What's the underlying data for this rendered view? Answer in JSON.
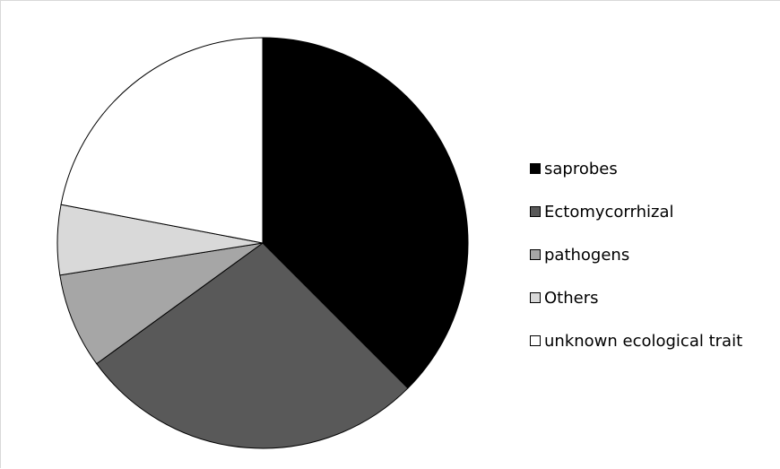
{
  "chart_data": {
    "type": "pie",
    "title": "",
    "labels": [
      "saprobes",
      "Ectomycorrhizal",
      "pathogens",
      "Others",
      "unknown ecological trait"
    ],
    "values": [
      37.5,
      27.5,
      7.5,
      5.5,
      22.0
    ],
    "colors": [
      "#000000",
      "#595959",
      "#a6a6a6",
      "#d9d9d9",
      "#ffffff"
    ],
    "start_angle": "12 o'clock",
    "direction": "clockwise",
    "legend_position": "right"
  }
}
